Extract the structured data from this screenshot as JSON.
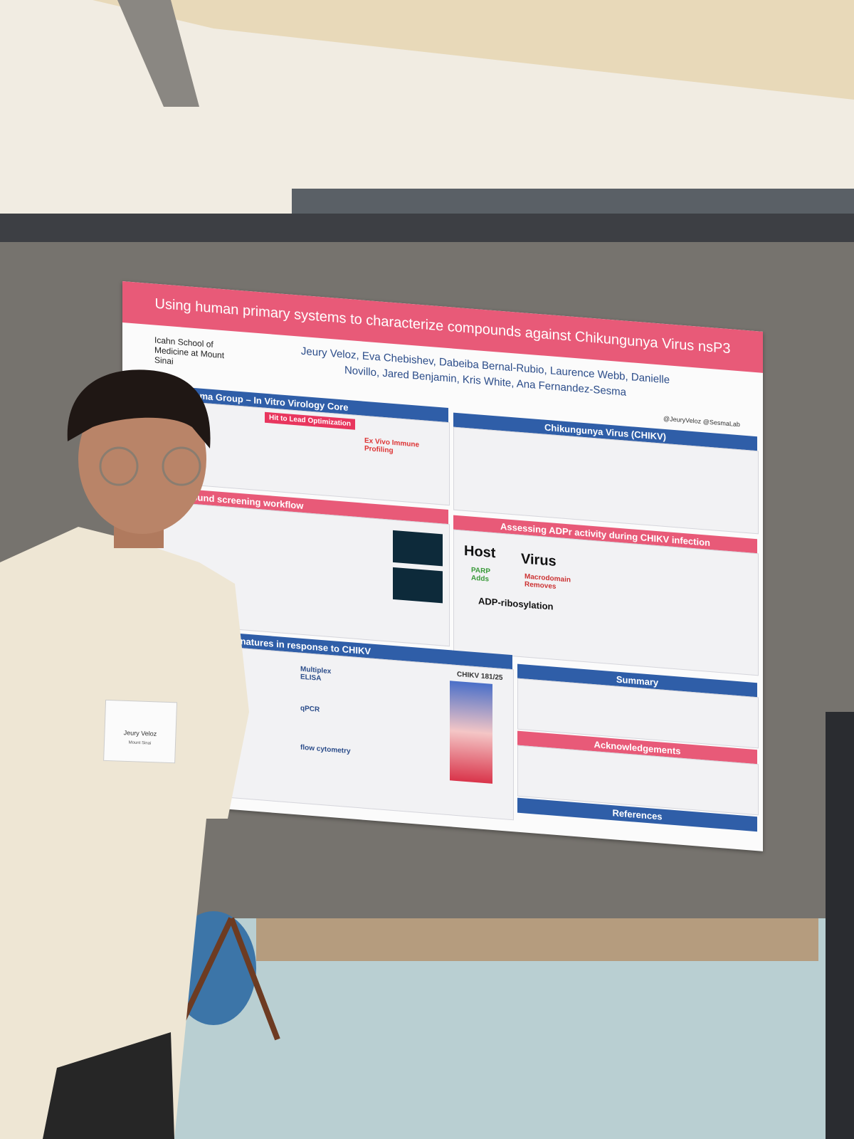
{
  "poster": {
    "title": "Using human primary systems to characterize compounds against Chikungunya Virus nsP3",
    "institution": "Icahn School of Medicine at Mount Sinai",
    "authors": [
      "Jeury Veloz",
      "Eva Chebishev",
      "Dabeiba Bernal-Rubio",
      "Laurence Webb",
      "Danielle Novillo",
      "Jared Benjamin",
      "Kris White",
      "Ana Fernandez-Sesma"
    ],
    "handles": [
      "@JeuryVeloz",
      "@SesmaLab"
    ],
    "sections": [
      "Fernandez-Sesma Group – In Vitro Virology Core",
      "Chikungunya Virus (CHIKV)",
      "In vitro compound screening workflow",
      "Assessing ADPr activity during CHIKV infection",
      "el to assess immune signatures in response to CHIKV",
      "Summary",
      "Acknowledgements",
      "References"
    ],
    "labels": [
      "Hit to Lead Optimization",
      "Ex Vivo Immune Profiling",
      "Host",
      "Virus",
      "PARP Adds",
      "Macrodomain Removes",
      "ADP-ribosylation",
      "Multiplex ELISA",
      "qPCR",
      "flow cytometry",
      "CHIKV 181/25"
    ]
  },
  "name_tag": {
    "name": "Jeury Veloz",
    "affiliation": "Mount Sinai"
  }
}
